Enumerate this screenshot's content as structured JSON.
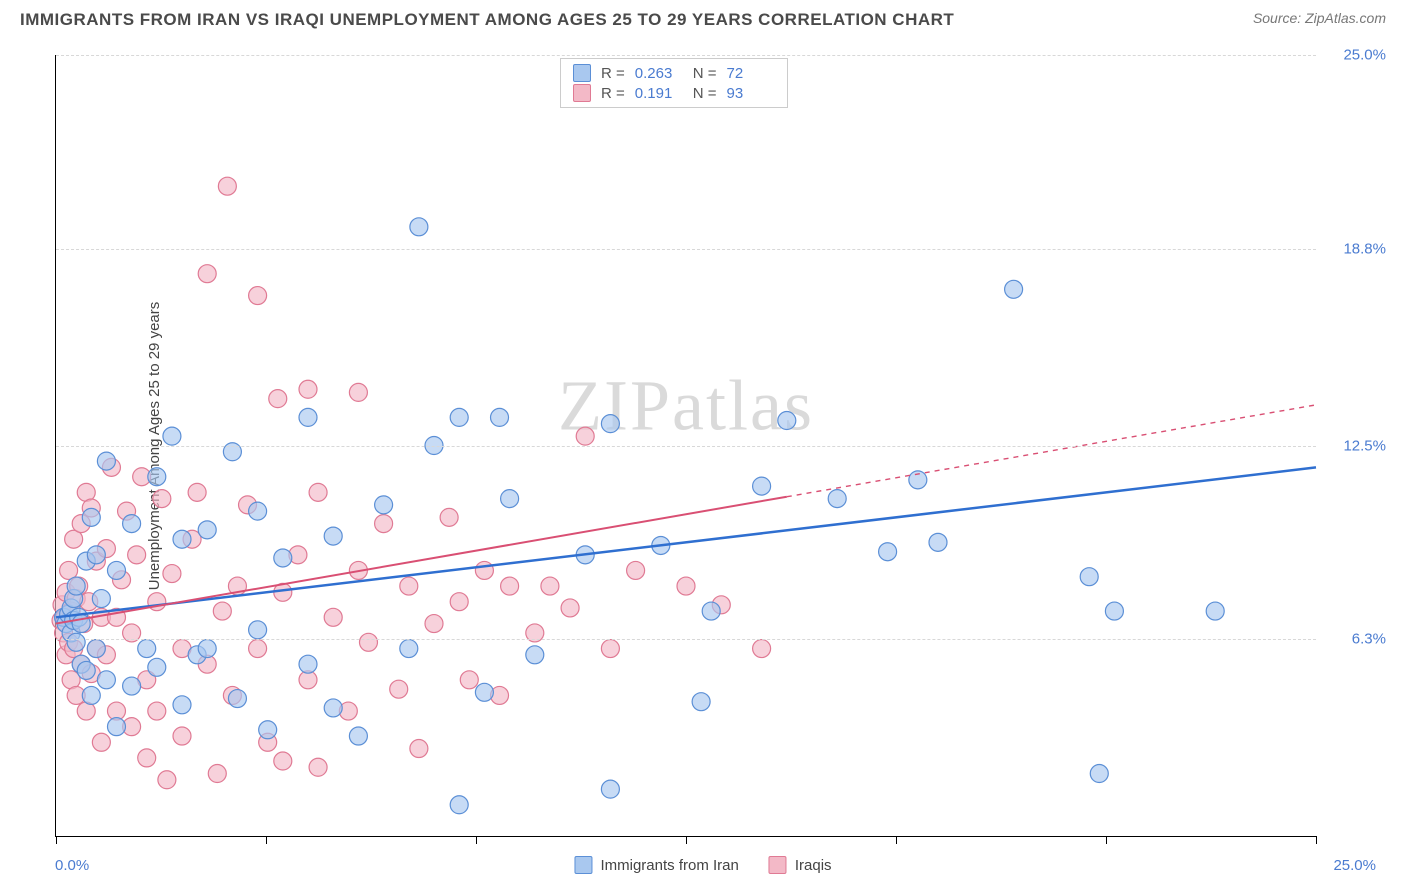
{
  "title": "IMMIGRANTS FROM IRAN VS IRAQI UNEMPLOYMENT AMONG AGES 25 TO 29 YEARS CORRELATION CHART",
  "source": "Source: ZipAtlas.com",
  "watermark": "ZIPatlas",
  "y_axis_label": "Unemployment Among Ages 25 to 29 years",
  "chart": {
    "type": "scatter",
    "xlim": [
      0,
      25
    ],
    "ylim": [
      0,
      25
    ],
    "x_ticks": [
      0,
      4.17,
      8.33,
      12.5,
      16.67,
      20.83,
      25
    ],
    "y_ticks": [
      {
        "v": 6.3,
        "label": "6.3%"
      },
      {
        "v": 12.5,
        "label": "12.5%"
      },
      {
        "v": 18.8,
        "label": "18.8%"
      },
      {
        "v": 25.0,
        "label": "25.0%"
      }
    ],
    "x_min_label": "0.0%",
    "x_max_label": "25.0%",
    "grid_color": "#d8d8d8",
    "background_color": "#ffffff",
    "marker_radius": 9,
    "marker_stroke_width": 1.2,
    "series": [
      {
        "name": "Immigrants from Iran",
        "fill": "#a9c8ef",
        "stroke": "#5b8fd6",
        "opacity": 0.65,
        "stats": {
          "R": "0.263",
          "N": "72"
        },
        "trend": {
          "x1": 0,
          "y1": 7.0,
          "x2": 25,
          "y2": 11.8,
          "solid_until": 25,
          "color": "#2f6fd0",
          "width": 2.5
        },
        "points": [
          [
            0.15,
            7.0
          ],
          [
            0.2,
            6.8
          ],
          [
            0.25,
            7.1
          ],
          [
            0.3,
            6.5
          ],
          [
            0.3,
            7.3
          ],
          [
            0.35,
            6.9
          ],
          [
            0.35,
            7.6
          ],
          [
            0.4,
            6.2
          ],
          [
            0.4,
            8.0
          ],
          [
            0.45,
            7.0
          ],
          [
            0.5,
            5.5
          ],
          [
            0.5,
            6.8
          ],
          [
            0.6,
            5.3
          ],
          [
            0.6,
            8.8
          ],
          [
            0.7,
            4.5
          ],
          [
            0.7,
            10.2
          ],
          [
            0.8,
            6.0
          ],
          [
            0.8,
            9.0
          ],
          [
            0.9,
            7.6
          ],
          [
            1.0,
            5.0
          ],
          [
            1.0,
            12.0
          ],
          [
            1.2,
            3.5
          ],
          [
            1.2,
            8.5
          ],
          [
            1.5,
            10.0
          ],
          [
            1.5,
            4.8
          ],
          [
            1.8,
            6.0
          ],
          [
            2.0,
            11.5
          ],
          [
            2.0,
            5.4
          ],
          [
            2.3,
            12.8
          ],
          [
            2.5,
            4.2
          ],
          [
            2.5,
            9.5
          ],
          [
            2.8,
            5.8
          ],
          [
            3.0,
            6.0
          ],
          [
            3.0,
            9.8
          ],
          [
            3.5,
            12.3
          ],
          [
            3.6,
            4.4
          ],
          [
            4.0,
            6.6
          ],
          [
            4.0,
            10.4
          ],
          [
            4.2,
            3.4
          ],
          [
            4.5,
            8.9
          ],
          [
            5.0,
            5.5
          ],
          [
            5.0,
            13.4
          ],
          [
            5.5,
            4.1
          ],
          [
            5.5,
            9.6
          ],
          [
            6.0,
            3.2
          ],
          [
            6.5,
            10.6
          ],
          [
            7.0,
            6.0
          ],
          [
            7.2,
            19.5
          ],
          [
            7.5,
            12.5
          ],
          [
            8.0,
            1.0
          ],
          [
            8.0,
            13.4
          ],
          [
            8.5,
            4.6
          ],
          [
            8.8,
            13.4
          ],
          [
            9.0,
            10.8
          ],
          [
            9.5,
            5.8
          ],
          [
            10.5,
            9.0
          ],
          [
            11.0,
            1.5
          ],
          [
            11.0,
            13.2
          ],
          [
            12.0,
            9.3
          ],
          [
            12.8,
            4.3
          ],
          [
            13.0,
            7.2
          ],
          [
            14.0,
            11.2
          ],
          [
            14.5,
            13.3
          ],
          [
            15.5,
            10.8
          ],
          [
            16.5,
            9.1
          ],
          [
            17.1,
            11.4
          ],
          [
            17.5,
            9.4
          ],
          [
            19.0,
            17.5
          ],
          [
            20.5,
            8.3
          ],
          [
            20.7,
            2.0
          ],
          [
            21.0,
            7.2
          ],
          [
            23.0,
            7.2
          ]
        ]
      },
      {
        "name": "Iraqis",
        "fill": "#f3b9c7",
        "stroke": "#e07a94",
        "opacity": 0.65,
        "stats": {
          "R": "0.191",
          "N": "93"
        },
        "trend": {
          "x1": 0,
          "y1": 6.8,
          "x2": 25,
          "y2": 13.8,
          "solid_until": 14.5,
          "color": "#d94f73",
          "width": 2
        },
        "points": [
          [
            0.1,
            6.9
          ],
          [
            0.12,
            7.4
          ],
          [
            0.15,
            6.5
          ],
          [
            0.18,
            7.0
          ],
          [
            0.2,
            5.8
          ],
          [
            0.2,
            7.8
          ],
          [
            0.25,
            6.2
          ],
          [
            0.25,
            8.5
          ],
          [
            0.3,
            5.0
          ],
          [
            0.3,
            7.2
          ],
          [
            0.35,
            6.0
          ],
          [
            0.35,
            9.5
          ],
          [
            0.4,
            4.5
          ],
          [
            0.4,
            7.6
          ],
          [
            0.45,
            8.0
          ],
          [
            0.5,
            5.5
          ],
          [
            0.5,
            10.0
          ],
          [
            0.55,
            6.8
          ],
          [
            0.6,
            4.0
          ],
          [
            0.6,
            11.0
          ],
          [
            0.65,
            7.5
          ],
          [
            0.7,
            5.2
          ],
          [
            0.7,
            10.5
          ],
          [
            0.8,
            6.0
          ],
          [
            0.8,
            8.8
          ],
          [
            0.9,
            3.0
          ],
          [
            0.9,
            7.0
          ],
          [
            1.0,
            9.2
          ],
          [
            1.0,
            5.8
          ],
          [
            1.1,
            11.8
          ],
          [
            1.2,
            4.0
          ],
          [
            1.2,
            7.0
          ],
          [
            1.3,
            8.2
          ],
          [
            1.4,
            10.4
          ],
          [
            1.5,
            3.5
          ],
          [
            1.5,
            6.5
          ],
          [
            1.6,
            9.0
          ],
          [
            1.7,
            11.5
          ],
          [
            1.8,
            5.0
          ],
          [
            1.8,
            2.5
          ],
          [
            2.0,
            7.5
          ],
          [
            2.0,
            4.0
          ],
          [
            2.1,
            10.8
          ],
          [
            2.2,
            1.8
          ],
          [
            2.3,
            8.4
          ],
          [
            2.5,
            6.0
          ],
          [
            2.5,
            3.2
          ],
          [
            2.7,
            9.5
          ],
          [
            2.8,
            11.0
          ],
          [
            3.0,
            5.5
          ],
          [
            3.0,
            18.0
          ],
          [
            3.2,
            2.0
          ],
          [
            3.3,
            7.2
          ],
          [
            3.4,
            20.8
          ],
          [
            3.5,
            4.5
          ],
          [
            3.6,
            8.0
          ],
          [
            3.8,
            10.6
          ],
          [
            4.0,
            17.3
          ],
          [
            4.0,
            6.0
          ],
          [
            4.2,
            3.0
          ],
          [
            4.4,
            14.0
          ],
          [
            4.5,
            2.4
          ],
          [
            4.5,
            7.8
          ],
          [
            4.8,
            9.0
          ],
          [
            5.0,
            14.3
          ],
          [
            5.0,
            5.0
          ],
          [
            5.2,
            2.2
          ],
          [
            5.2,
            11.0
          ],
          [
            5.5,
            7.0
          ],
          [
            5.8,
            4.0
          ],
          [
            6.0,
            8.5
          ],
          [
            6.0,
            14.2
          ],
          [
            6.2,
            6.2
          ],
          [
            6.5,
            10.0
          ],
          [
            6.8,
            4.7
          ],
          [
            7.0,
            8.0
          ],
          [
            7.2,
            2.8
          ],
          [
            7.5,
            6.8
          ],
          [
            7.8,
            10.2
          ],
          [
            8.0,
            7.5
          ],
          [
            8.2,
            5.0
          ],
          [
            8.5,
            8.5
          ],
          [
            8.8,
            4.5
          ],
          [
            9.0,
            8.0
          ],
          [
            9.5,
            6.5
          ],
          [
            9.8,
            8.0
          ],
          [
            10.2,
            7.3
          ],
          [
            10.5,
            12.8
          ],
          [
            11.0,
            6.0
          ],
          [
            11.5,
            8.5
          ],
          [
            12.5,
            8.0
          ],
          [
            13.2,
            7.4
          ],
          [
            14.0,
            6.0
          ]
        ]
      }
    ]
  },
  "stats_box_label_R": "R =",
  "stats_box_label_N": "N =",
  "legend": [
    {
      "label": "Immigrants from Iran",
      "fill": "#a9c8ef",
      "stroke": "#5b8fd6"
    },
    {
      "label": "Iraqis",
      "fill": "#f3b9c7",
      "stroke": "#e07a94"
    }
  ]
}
